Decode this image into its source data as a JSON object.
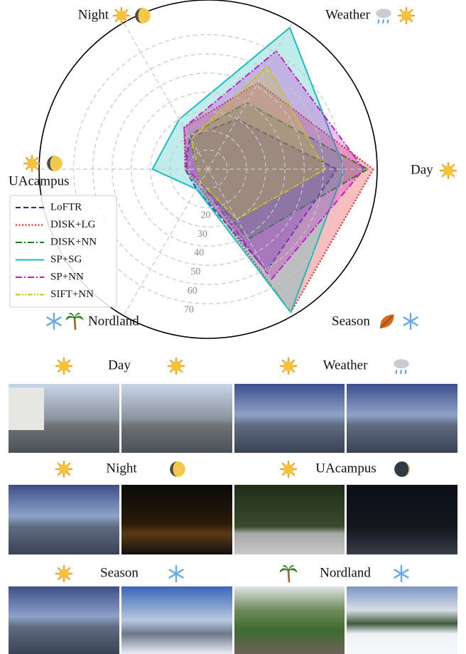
{
  "chart_data": {
    "type": "radar",
    "axes": [
      "Day",
      "Weather",
      "Night",
      "UAcampus",
      "Nordland",
      "Season"
    ],
    "rlim": [
      0,
      88
    ],
    "rticks": [
      10,
      20,
      30,
      40,
      50,
      60,
      70
    ],
    "grid": true,
    "legend": "left",
    "series": [
      {
        "name": "LoFTR",
        "color": "#1f1fd6",
        "linestyle": "dashed",
        "values": [
          67,
          30,
          19,
          12,
          12,
          61
        ]
      },
      {
        "name": "DISK+LG",
        "color": "#e8171a",
        "linestyle": "dotted",
        "values": [
          86,
          52,
          25,
          12,
          10,
          86
        ]
      },
      {
        "name": "DISK+NN",
        "color": "#1e7d1e",
        "linestyle": "dashdot",
        "values": [
          83,
          40,
          20,
          5,
          8,
          42
        ]
      },
      {
        "name": "SP+SG",
        "color": "#1bbcbc",
        "linestyle": "solid",
        "values": [
          71,
          85,
          30,
          29,
          12,
          86
        ]
      },
      {
        "name": "SP+NN",
        "color": "#c41bc4",
        "linestyle": "dashdot",
        "values": [
          81,
          71,
          25,
          11,
          8,
          66
        ]
      },
      {
        "name": "SIFT+NN",
        "color": "#c9c21b",
        "linestyle": "dashdotdot",
        "values": [
          61,
          62,
          18,
          5,
          8,
          30
        ]
      }
    ]
  },
  "panels": [
    {
      "title": "Day"
    },
    {
      "title": "Weather"
    },
    {
      "title": "Night"
    },
    {
      "title": "UAcampus"
    },
    {
      "title": "Season"
    },
    {
      "title": "Nordland"
    }
  ]
}
